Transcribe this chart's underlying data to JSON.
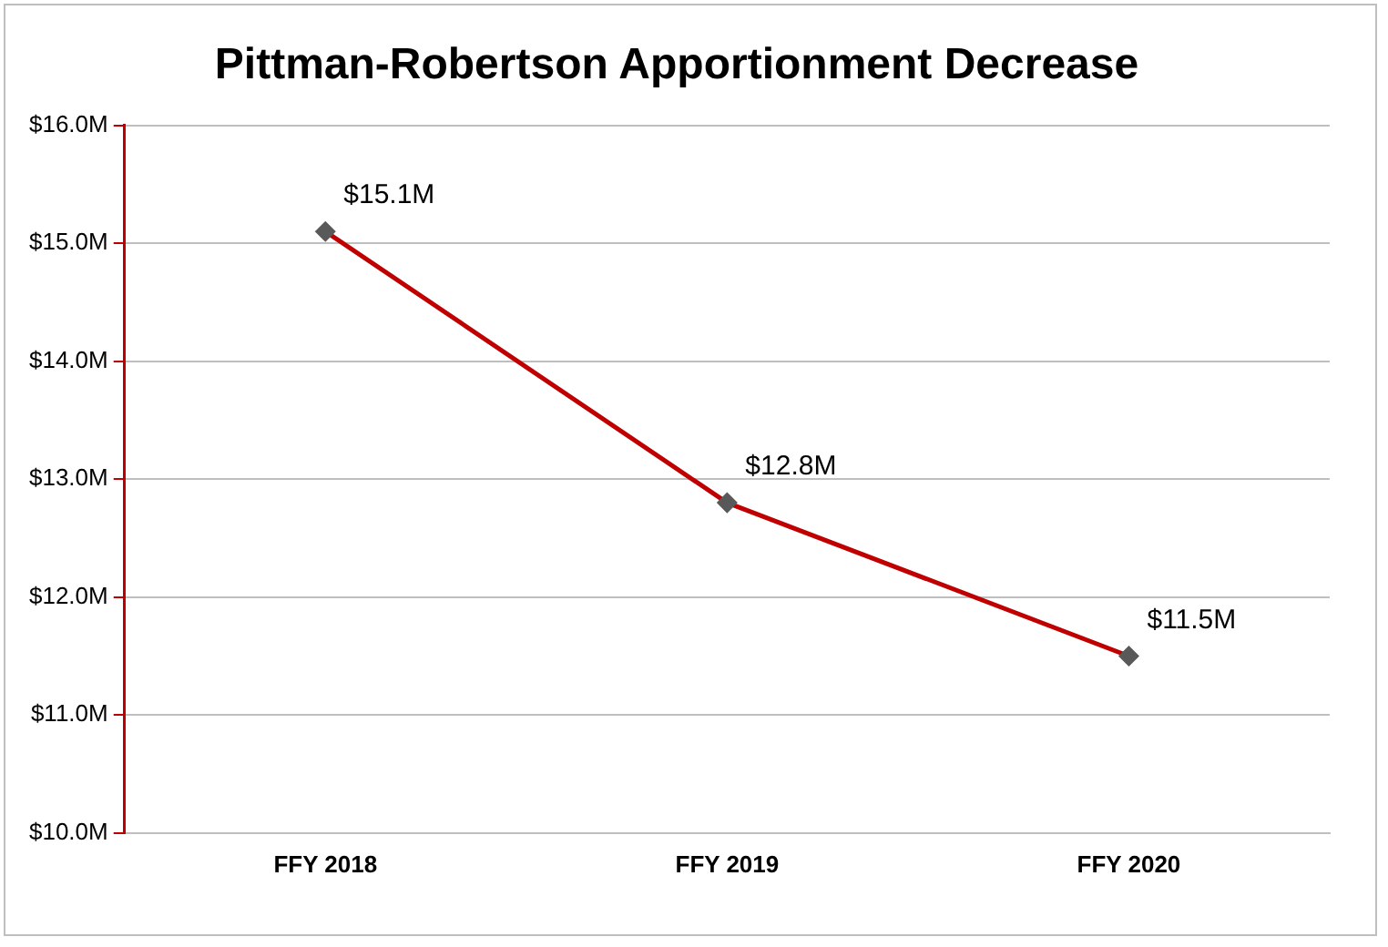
{
  "chart_data": {
    "type": "line",
    "title": "Pittman-Robertson Apportionment Decrease",
    "categories": [
      "FFY 2018",
      "FFY 2019",
      "FFY 2020"
    ],
    "series": [
      {
        "color": "#c00000",
        "values": [
          15.1,
          12.8,
          11.5
        ],
        "value_labels": [
          "$15.1M",
          "$12.8M",
          "$11.5M"
        ]
      }
    ],
    "ylim": [
      10,
      16
    ],
    "yticks": [
      {
        "value": 10,
        "label": "$10.0M"
      },
      {
        "value": 11,
        "label": "$11.0M"
      },
      {
        "value": 12,
        "label": "$12.0M"
      },
      {
        "value": 13,
        "label": "$13.0M"
      },
      {
        "value": 14,
        "label": "$14.0M"
      },
      {
        "value": 15,
        "label": "$15.0M"
      },
      {
        "value": 16,
        "label": "$16.0M"
      }
    ],
    "grid": "y",
    "legend": false,
    "marker": "diamond",
    "line_style": "solid"
  }
}
